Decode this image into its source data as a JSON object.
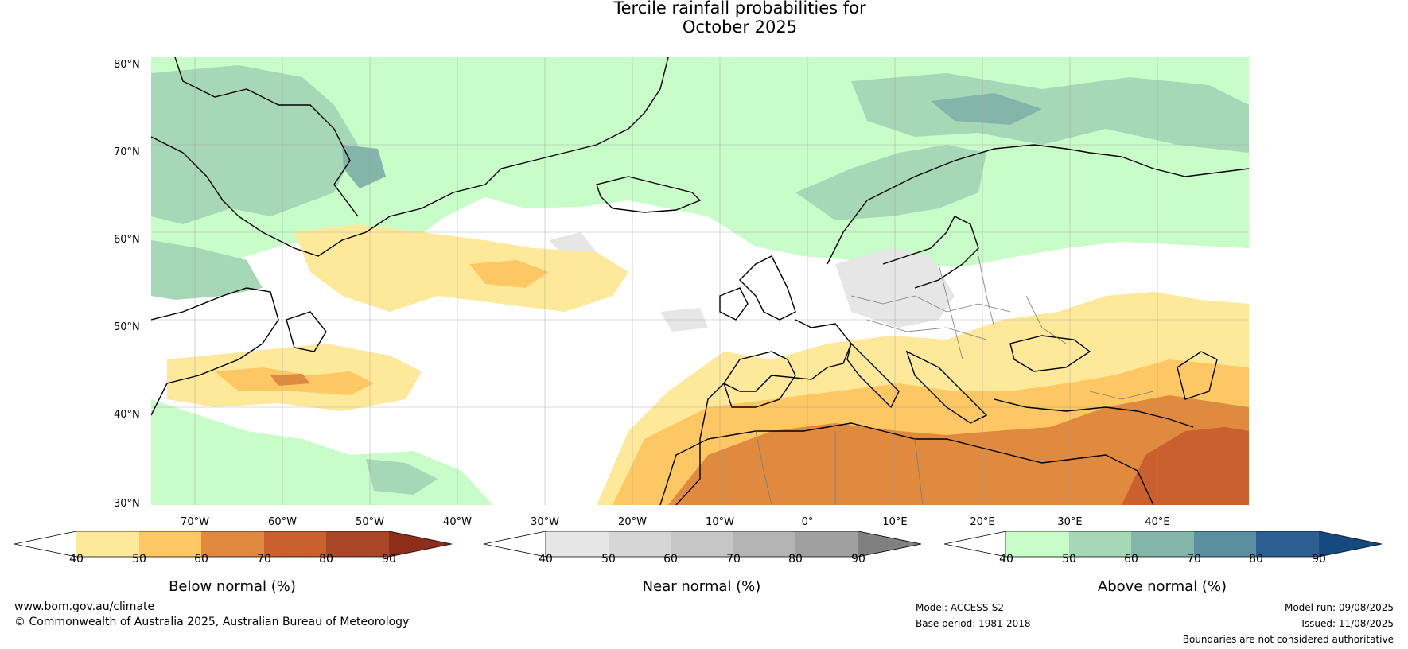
{
  "title": {
    "line1": "Tercile rainfall probabilities for",
    "line2": "October 2025"
  },
  "map": {
    "lat_labels": [
      "80°N",
      "70°N",
      "60°N",
      "50°N",
      "40°N",
      "30°N"
    ],
    "lon_labels": [
      "70°W",
      "60°W",
      "50°W",
      "40°W",
      "30°W",
      "20°W",
      "10°W",
      "0°",
      "10°E",
      "20°E",
      "30°E",
      "40°E"
    ]
  },
  "colorbars": [
    {
      "title": "Below normal (%)",
      "ticks": [
        "40",
        "50",
        "60",
        "70",
        "80",
        "90"
      ],
      "colors": [
        "#ffffff",
        "#fee99a",
        "#fdc763",
        "#df8a3f",
        "#c9602d",
        "#aa4526",
        "#8e2d1a"
      ]
    },
    {
      "title": "Near normal (%)",
      "ticks": [
        "40",
        "50",
        "60",
        "70",
        "80",
        "90"
      ],
      "colors": [
        "#ffffff",
        "#e6e6e6",
        "#d6d6d6",
        "#c6c6c6",
        "#b4b4b4",
        "#a0a0a0",
        "#808080"
      ]
    },
    {
      "title": "Above normal (%)",
      "ticks": [
        "40",
        "50",
        "60",
        "70",
        "80",
        "90"
      ],
      "colors": [
        "#ffffff",
        "#c8fcc8",
        "#a6d8b8",
        "#84b5aa",
        "#5b8fa0",
        "#2e5f93",
        "#154a80"
      ]
    }
  ],
  "footer": {
    "website": "www.bom.gov.au/climate",
    "copyright": "© Commonwealth of Australia 2025, Australian Bureau of Meteorology",
    "model": "Model: ACCESS-S2",
    "base_period": "Base period: 1981-2018",
    "model_run": "Model run: 09/08/2025",
    "issued": "Issued: 11/08/2025",
    "disclaimer": "Boundaries are not considered authoritative"
  }
}
